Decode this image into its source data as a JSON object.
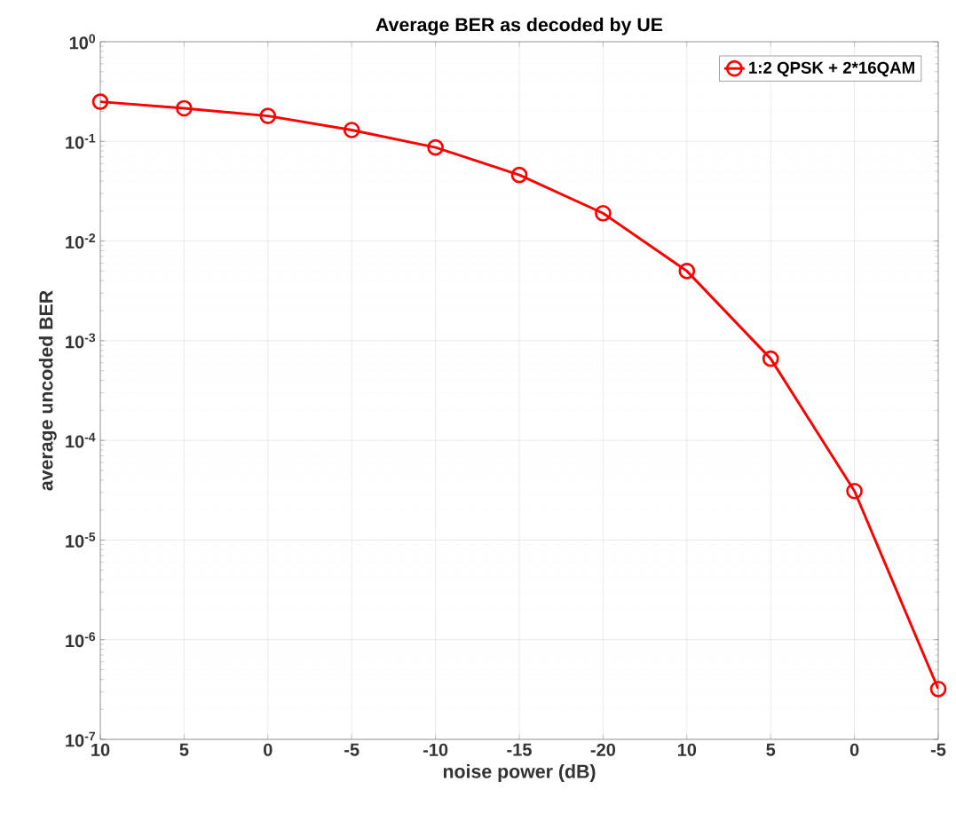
{
  "chart_data": {
    "type": "line",
    "title": "Average BER as decoded by UE",
    "xlabel": "noise power (dB)",
    "ylabel": "average uncoded BER",
    "categories": [
      "10",
      "5",
      "0",
      "-5",
      "-10",
      "-15",
      "-20",
      "10",
      "5",
      "0",
      "-5"
    ],
    "series": [
      {
        "name": "1:2 QPSK + 2*16QAM",
        "color": "#ff0000",
        "values": [
          0.25,
          0.215,
          0.18,
          0.13,
          0.087,
          0.046,
          0.019,
          0.005,
          0.00066,
          3.1e-05,
          3.2e-07
        ]
      }
    ],
    "log": "y",
    "ylim": [
      1e-07,
      1
    ],
    "yticks": [
      {
        "value": 1e-07,
        "label": "10$^{-7}$"
      },
      {
        "value": 1e-06,
        "label": "10$^{-6}$"
      },
      {
        "value": 1e-05,
        "label": "10$^{-5}$"
      },
      {
        "value": 0.0001,
        "label": "10$^{-4}$"
      },
      {
        "value": 0.001,
        "label": "10$^{-3}$"
      },
      {
        "value": 0.01,
        "label": "10$^{-2}$"
      },
      {
        "value": 0.1,
        "label": "10$^{-1}$"
      },
      {
        "value": 1,
        "label": "10$^{0}$"
      }
    ],
    "grid": true,
    "legend": "top right",
    "marker": "circle",
    "line_style": "solid"
  }
}
